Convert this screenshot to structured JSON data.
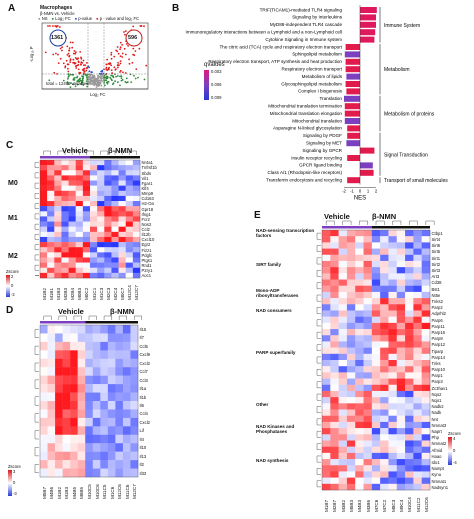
{
  "panelA": {
    "label": "A",
    "title": "Macrophages",
    "subtitle": "β-NMN vs. Vehicle",
    "legend": [
      "NS",
      "Log₂ FC",
      "p-value",
      "p - value and log₂ FC"
    ],
    "count_left": "1361",
    "count_right": "596",
    "total": "total = 12498 variables",
    "xlabel": "Log₂ FC",
    "ylabel": "-Log₁₀ P"
  },
  "panelB": {
    "label": "B",
    "terms": [
      "TRIF(TICAM1)-mediated TLR4 signaling",
      "Signaling by Interleukins",
      "MyD88-independent TLR4 cascade",
      "Immunoregulatory interactions between a Lymphoid and a non-Lymphoid cell",
      "Cytokine Signaling in Immune system",
      "The citric acid (TCA) cycle and respiratory electron transport",
      "Sphingolipid metabolism",
      "Respiratory electron transport, ATP synthesis and heat production",
      "Respiratory electron transport",
      "Metabolism of lipids",
      "Glycosphingolipid metabolism",
      "Complex I biogenesis",
      "Translation",
      "Mitochondrial translation termination",
      "Mitochondrial translation elongation",
      "Mitochondrial translation",
      "Asparagine N-linked glycosylation",
      "Signaling by PDGF",
      "Signaling by MET",
      "Signaling by GPCR",
      "Insulin receptor recycling",
      "GPCR ligand binding",
      "Class A/1 (Rhodopsin-like receptors)",
      "Transferrin endocytosis and recycling"
    ],
    "nes": [
      2.1,
      2.0,
      2.0,
      1.9,
      1.8,
      -1.8,
      -1.9,
      -1.8,
      -1.8,
      -1.7,
      -1.8,
      -1.7,
      -2.0,
      -1.9,
      -1.9,
      -1.9,
      -1.6,
      -1.6,
      -1.7,
      1.8,
      -1.6,
      1.6,
      1.7,
      -1.6
    ],
    "categories": [
      "Immune System",
      "Metabolism",
      "Metabolism of proteins",
      "Signal Transduction",
      "Transport of small molecules"
    ],
    "legend_title": "qvalues",
    "legend_ticks": [
      "0.003",
      "0.006",
      "0.009"
    ],
    "xlabel": "NES",
    "xticks": [
      "-2",
      "-1",
      "0",
      "1",
      "2"
    ]
  },
  "panelC": {
    "label": "C",
    "groups": [
      "Vehicle",
      "β-NMN"
    ],
    "blocks": [
      "M0",
      "M1",
      "M2"
    ],
    "genes": [
      "Nr4a1",
      "Tnfrsf1b",
      "Sbds",
      "Vil1",
      "Fgar1",
      "Klf4",
      "Mmp9",
      "Cd163",
      "H2-Oa",
      "Gpr18",
      "Ifng1",
      "Fcr2",
      "Nos2",
      "Ccl2",
      "Il12b",
      "Cxcl10",
      "Egr2",
      "Fizz1",
      "Pdgfc",
      "Ptgs1",
      "Rnd1",
      "P2ry1",
      "Aoc1"
    ],
    "samples": [
      "M1B2",
      "M1B1",
      "M1B3",
      "M2B3",
      "M2B4",
      "M0B3",
      "M0C2",
      "M1C1",
      "M1C3",
      "M2C3",
      "M2C4",
      "M0C7",
      "M12C4",
      "M12C7"
    ],
    "zscore_label": "Zscore",
    "zscore_ticks": [
      "2",
      "1",
      "0",
      "-1",
      "-2"
    ]
  },
  "panelD": {
    "label": "D",
    "groups": [
      "Vehicle",
      "β-NMN"
    ],
    "genes": [
      "Il15",
      "Il7",
      "Ccl5",
      "Cxcl9",
      "Cxcl2",
      "Ccl7",
      "Ccl3",
      "Il1a",
      "Il1b",
      "Il6",
      "Ccl4",
      "Cxcl2",
      "Lif",
      "Il4",
      "Il10",
      "Il13",
      "Il2",
      "Il33"
    ],
    "samples": [
      "M5B7",
      "M4B6",
      "M1B2",
      "M1B3",
      "M4B5",
      "M5B5",
      "M10C5",
      "M10C6",
      "M11C5",
      "M1C6",
      "M12C6",
      "M11C6",
      "M12C7"
    ],
    "zscore_label": "Zscore",
    "zscore_ticks": [
      "3",
      "2",
      "1",
      "0",
      "-1",
      "-2",
      "-3"
    ]
  },
  "panelE": {
    "label": "E",
    "groups": [
      "Vehicle",
      "β-NMN"
    ],
    "sections": [
      "NAD-sensing transcription factors",
      "SIRT family",
      "Mono-ADP ribosyltransferases",
      "NAD consumers",
      "PARP superfamily",
      "Other",
      "NAD Kinases and Phosphatases",
      "NAD synthesis"
    ],
    "genes": [
      "Ctbp1",
      "Sirt4",
      "Sirt6",
      "Sirt5",
      "Sirt1",
      "Sirt2",
      "Sirt3",
      "Art3",
      "Cd38",
      "Bst1",
      "Nt5e",
      "Tnks2",
      "Parp2",
      "Adprhl2",
      "Parp6",
      "Parp11",
      "Parp16",
      "Parp8",
      "Parp12",
      "Tiparp",
      "Parp14",
      "Tnks",
      "Parp10",
      "Parp1",
      "Parp3",
      "Zc3hav1",
      "Nqo2",
      "Nqo1",
      "Nadk2",
      "Nadk",
      "Nnt",
      "Nmnat3",
      "Naprt",
      "Php",
      "Nmnat2",
      "Afmid",
      "Haao",
      "Ido1",
      "Nampt",
      "Kynu",
      "Nmnat1",
      "Nadsyn1"
    ],
    "samples": [
      "M1B7",
      "M2B7",
      "M3B2",
      "M5B3",
      "M4B3",
      "M3B6",
      "M7C6",
      "M7C2",
      "M8C3",
      "M9C4",
      "M10C4",
      "M11C2",
      "M12C6"
    ],
    "zscore_label": "Zscore",
    "zscore_ticks": [
      "4",
      "2",
      "0",
      "-2",
      "-4"
    ]
  }
}
